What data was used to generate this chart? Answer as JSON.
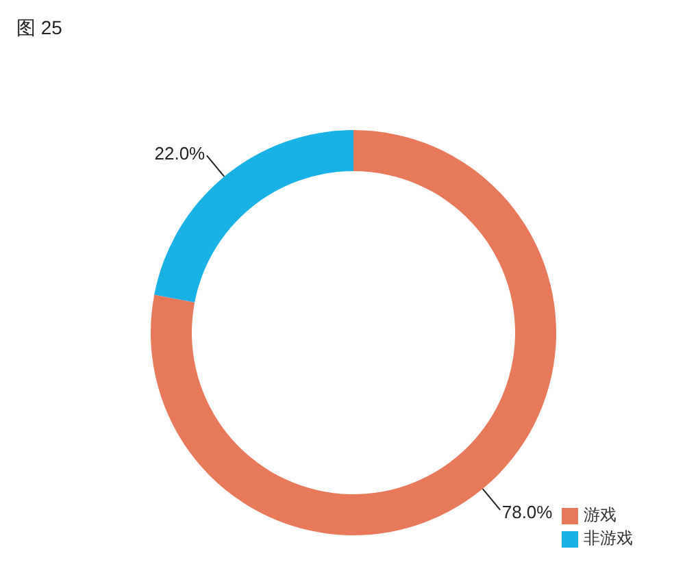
{
  "chart_data": {
    "type": "donut",
    "title": "图 25",
    "categories": [
      "游戏",
      "非游戏"
    ],
    "values": [
      78.0,
      22.0
    ],
    "colors": [
      "#e8785a",
      "#1ab2e6"
    ],
    "value_labels": [
      "78.0%",
      "22.0%"
    ],
    "legend": "bottom right"
  }
}
